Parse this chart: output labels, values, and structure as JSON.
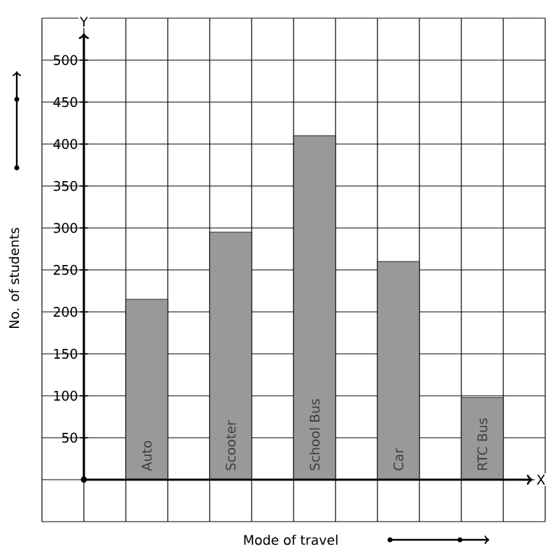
{
  "chart_data": {
    "type": "bar",
    "xlabel": "Mode of travel",
    "ylabel": "No. of students",
    "categories": [
      "Auto",
      "Scooter",
      "School Bus",
      "Car",
      "RTC Bus"
    ],
    "values": [
      215,
      295,
      410,
      260,
      98
    ],
    "color": "#999999",
    "ylim": [
      -50,
      550
    ],
    "yticks": [
      {
        "value": 0,
        "label": null
      },
      50,
      100,
      150,
      200,
      250,
      300,
      350,
      400,
      450,
      500
    ],
    "grid": true,
    "annotations": [
      "X",
      "Y"
    ]
  }
}
